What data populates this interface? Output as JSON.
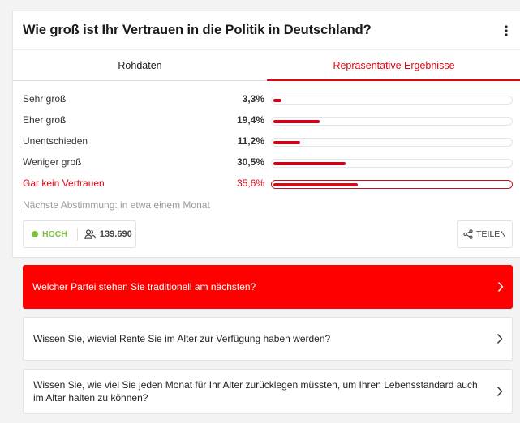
{
  "poll": {
    "title": "Wie groß ist Ihr Vertrauen in die Politik in Deutschland?",
    "tabs": {
      "raw": "Rohdaten",
      "representative": "Repräsentative Ergebnisse"
    },
    "results": [
      {
        "label": "Sehr groß",
        "percent_text": "3,3%",
        "value": 3.3
      },
      {
        "label": "Eher groß",
        "percent_text": "19,4%",
        "value": 19.4
      },
      {
        "label": "Unentschieden",
        "percent_text": "11,2%",
        "value": 11.2
      },
      {
        "label": "Weniger groß",
        "percent_text": "30,5%",
        "value": 30.5
      },
      {
        "label": "Gar kein Vertrauen",
        "percent_text": "35,6%",
        "value": 35.6
      }
    ],
    "next_vote": "Nächste Abstimmung: in etwa einem Monat",
    "stats": {
      "level": "HOCH",
      "count": "139.690"
    },
    "share_label": "TEILEN"
  },
  "related_questions": [
    "Welcher Partei stehen Sie traditionell am nächsten?",
    "Wissen Sie, wieviel Rente Sie im Alter zur Verfügung haben werden?",
    "Wissen Sie, wie viel Sie jeden Monat für Ihr Alter zurücklegen müssten, um Ihren Lebensstandard auch im Alter halten zu können?"
  ],
  "colors": {
    "accent": "#e30613",
    "bar": "#d0021b",
    "level": "#7cc23f"
  },
  "icons": {
    "menu": "more-vertical-icon",
    "users": "users-icon",
    "share": "share-icon",
    "chevron": "chevron-right-icon"
  }
}
